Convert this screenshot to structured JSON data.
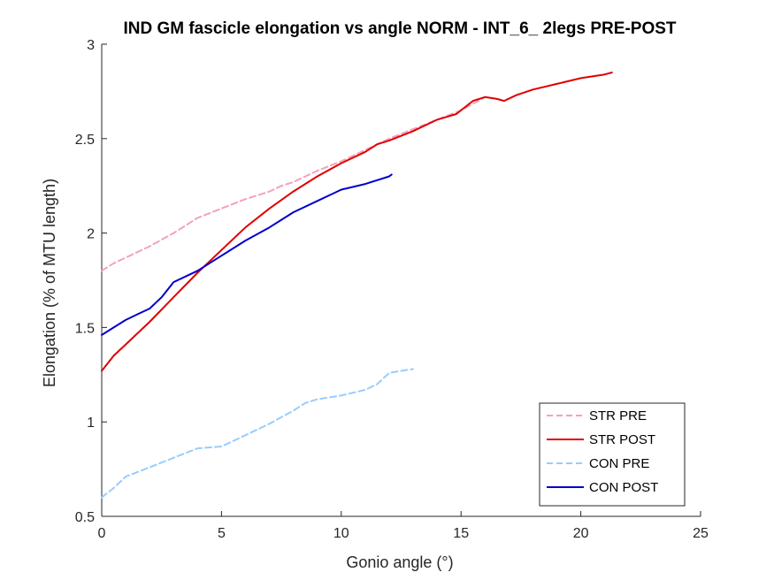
{
  "chart_data": {
    "type": "line",
    "title": "IND GM fascicle elongation vs angle NORM - INT_6_ 2legs PRE-POST",
    "xlabel": "Gonio angle (°)",
    "ylabel": "Elongation (% of MTU length)",
    "xlim": [
      0,
      25
    ],
    "ylim": [
      0.5,
      3
    ],
    "xticks": [
      "0",
      "5",
      "10",
      "15",
      "20",
      "25"
    ],
    "yticks": [
      "0.5",
      "1",
      "1.5",
      "2",
      "2.5",
      "3"
    ],
    "grid": false,
    "legend_position": "bottom-right",
    "series": [
      {
        "name": "STR PRE",
        "color": "#f4a0c0",
        "dash": "dashed",
        "x": [
          0,
          0.5,
          1,
          2,
          3,
          3.5,
          4,
          5,
          6,
          7,
          7.5,
          8,
          8.5,
          9,
          10,
          11,
          11.5,
          12,
          13,
          14,
          15,
          16
        ],
        "y": [
          1.8,
          1.84,
          1.87,
          1.93,
          2.0,
          2.04,
          2.08,
          2.13,
          2.18,
          2.22,
          2.25,
          2.27,
          2.3,
          2.33,
          2.38,
          2.44,
          2.47,
          2.5,
          2.55,
          2.6,
          2.65,
          2.72
        ]
      },
      {
        "name": "STR POST",
        "color": "#e00000",
        "dash": "solid",
        "x": [
          0,
          0.5,
          1,
          2,
          3,
          4,
          5,
          6,
          7,
          8,
          9,
          10,
          11,
          11.5,
          12,
          13,
          14,
          14.8,
          15.5,
          16,
          16.5,
          16.8,
          17.3,
          18,
          19,
          20,
          21,
          21.3
        ],
        "y": [
          1.27,
          1.35,
          1.41,
          1.53,
          1.66,
          1.79,
          1.91,
          2.03,
          2.13,
          2.22,
          2.3,
          2.37,
          2.43,
          2.47,
          2.49,
          2.54,
          2.6,
          2.63,
          2.7,
          2.72,
          2.71,
          2.7,
          2.73,
          2.76,
          2.79,
          2.82,
          2.84,
          2.85
        ]
      },
      {
        "name": "CON PRE",
        "color": "#99ccff",
        "dash": "dashed",
        "x": [
          0,
          0.5,
          1,
          2,
          3,
          4,
          5,
          6,
          7,
          8,
          8.5,
          9,
          10,
          11,
          11.5,
          12,
          12.5,
          13
        ],
        "y": [
          0.6,
          0.65,
          0.71,
          0.76,
          0.81,
          0.86,
          0.87,
          0.93,
          0.99,
          1.06,
          1.1,
          1.12,
          1.14,
          1.17,
          1.2,
          1.26,
          1.27,
          1.28
        ]
      },
      {
        "name": "CON POST",
        "color": "#0000cc",
        "dash": "solid",
        "x": [
          0,
          0.5,
          1,
          1.5,
          2,
          2.5,
          3,
          3.5,
          4,
          5,
          6,
          7,
          8,
          9,
          10,
          11,
          12,
          12.1
        ],
        "y": [
          1.46,
          1.5,
          1.54,
          1.57,
          1.6,
          1.66,
          1.74,
          1.77,
          1.8,
          1.88,
          1.96,
          2.03,
          2.11,
          2.17,
          2.23,
          2.26,
          2.3,
          2.31
        ]
      }
    ]
  }
}
